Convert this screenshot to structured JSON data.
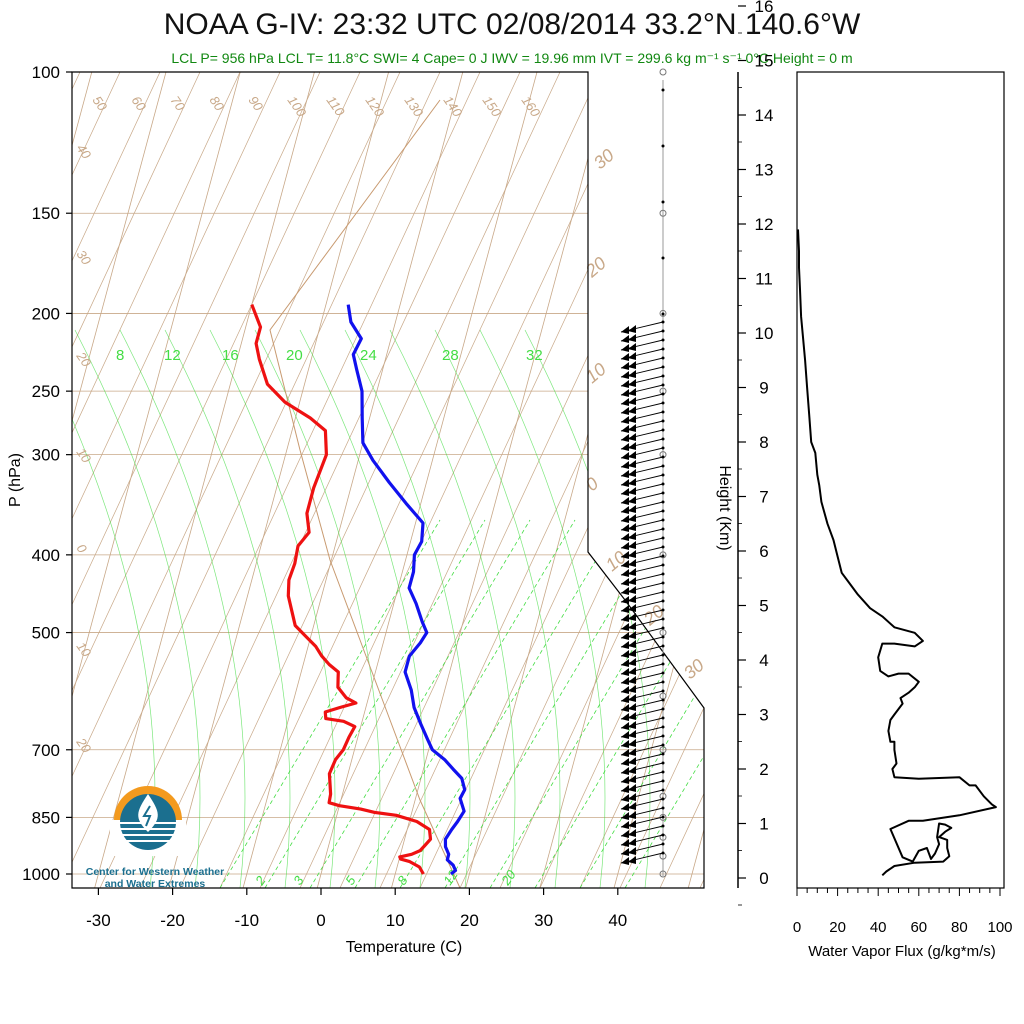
{
  "title": "NOAA G-IV: 23:32 UTC 02/08/2014  33.2°N 140.6°W",
  "subtitle": "LCL P= 956 hPa  LCL T= 11.8°C  SWI= 4  Cape= 0 J  IWV = 19.96 mm  IVT = 299.6 kg m⁻¹ s⁻¹  0°C Height = 0 m",
  "logo": {
    "line1": "Center for Western Weather",
    "line2": "and Water Extremes",
    "icon": "water-drop-sun-icon"
  },
  "colors": {
    "temperature": "#ee1111",
    "dewpoint": "#1111ee",
    "grid": "#c8a888",
    "mixing": "#44dd44",
    "title_sub": "#118811"
  },
  "chart_data": [
    {
      "type": "line",
      "chart": "skew-t",
      "xlabel": "Temperature (C)",
      "ylabel": "P (hPa)",
      "xlim": [
        -34,
        52
      ],
      "x_ticks": [
        -30,
        -20,
        -10,
        0,
        10,
        20,
        30,
        40
      ],
      "y_ticks": [
        100,
        150,
        200,
        250,
        300,
        400,
        500,
        700,
        850,
        1000
      ],
      "ylim": [
        1050,
        100
      ],
      "log_pressure": true,
      "isotherm_labels": [
        "50",
        "60",
        "70",
        "80",
        "90",
        "100",
        "110",
        "120",
        "130",
        "140",
        "150",
        "160",
        "40",
        "30",
        "20",
        "10",
        "0",
        "-10",
        "-20",
        "30",
        "20",
        "10",
        "0",
        "10",
        "20",
        "30"
      ],
      "mixing_ratio_labels_upper": [
        "8",
        "12",
        "16",
        "20",
        "24",
        "28",
        "32"
      ],
      "mixing_ratio_labels_lower": [
        "2",
        "3",
        "5",
        "8",
        "12",
        "20"
      ],
      "series": [
        {
          "name": "",
          "role": "temperature",
          "points": [
            [
              13.8,
              1000
            ],
            [
              13.0,
              980
            ],
            [
              12.0,
              970
            ],
            [
              11.5,
              965
            ],
            [
              10.2,
              958
            ],
            [
              10.0,
              952
            ],
            [
              11.5,
              945
            ],
            [
              12.5,
              935
            ],
            [
              13.0,
              920
            ],
            [
              13.5,
              905
            ],
            [
              13.0,
              880
            ],
            [
              11.0,
              860
            ],
            [
              8.0,
              845
            ],
            [
              5.0,
              838
            ],
            [
              3.0,
              830
            ],
            [
              0.0,
              822
            ],
            [
              -1.5,
              815
            ],
            [
              -1.6,
              795
            ],
            [
              -2.0,
              775
            ],
            [
              -2.5,
              750
            ],
            [
              -2.2,
              720
            ],
            [
              -1.5,
              700
            ],
            [
              -1.2,
              675
            ],
            [
              -0.8,
              655
            ],
            [
              -2.5,
              645
            ],
            [
              -5.0,
              640
            ],
            [
              -5.3,
              628
            ],
            [
              -3.5,
              620
            ],
            [
              -1.5,
              612
            ],
            [
              -3.0,
              603
            ],
            [
              -4.5,
              585
            ],
            [
              -4.8,
              570
            ],
            [
              -5.0,
              560
            ],
            [
              -6.5,
              548
            ],
            [
              -7.8,
              535
            ],
            [
              -9.0,
              520
            ],
            [
              -10.5,
              507
            ],
            [
              -12.5,
              490
            ],
            [
              -14.5,
              450
            ],
            [
              -15.0,
              430
            ],
            [
              -14.8,
              410
            ],
            [
              -15.0,
              390
            ],
            [
              -14.0,
              375
            ],
            [
              -15.0,
              355
            ],
            [
              -15.0,
              330
            ],
            [
              -14.5,
              300
            ],
            [
              -15.5,
              280
            ],
            [
              -18.0,
              270
            ],
            [
              -22.0,
              258
            ],
            [
              -25.0,
              245
            ],
            [
              -27.0,
              228
            ],
            [
              -28.0,
              218
            ],
            [
              -28.0,
              208
            ],
            [
              -30.0,
              195
            ]
          ]
        },
        {
          "name": "",
          "role": "dewpoint",
          "points": [
            [
              17.5,
              1000
            ],
            [
              18.0,
              990
            ],
            [
              17.5,
              975
            ],
            [
              16.5,
              960
            ],
            [
              16.5,
              945
            ],
            [
              15.8,
              925
            ],
            [
              15.5,
              905
            ],
            [
              16.0,
              880
            ],
            [
              16.5,
              860
            ],
            [
              17.0,
              835
            ],
            [
              16.0,
              805
            ],
            [
              16.3,
              785
            ],
            [
              15.5,
              760
            ],
            [
              14.0,
              740
            ],
            [
              12.5,
              720
            ],
            [
              10.5,
              700
            ],
            [
              9.5,
              680
            ],
            [
              8.0,
              650
            ],
            [
              6.5,
              620
            ],
            [
              5.5,
              590
            ],
            [
              4.0,
              560
            ],
            [
              4.0,
              535
            ],
            [
              5.0,
              515
            ],
            [
              5.5,
              500
            ],
            [
              4.5,
              485
            ],
            [
              3.0,
              460
            ],
            [
              1.5,
              440
            ],
            [
              1.5,
              420
            ],
            [
              1.0,
              400
            ],
            [
              1.5,
              385
            ],
            [
              1.0,
              365
            ],
            [
              -2.0,
              345
            ],
            [
              -5.0,
              325
            ],
            [
              -8.0,
              305
            ],
            [
              -10.0,
              290
            ],
            [
              -11.0,
              270
            ],
            [
              -12.0,
              250
            ],
            [
              -13.5,
              235
            ],
            [
              -14.5,
              225
            ],
            [
              -14.0,
              215
            ],
            [
              -16.0,
              205
            ],
            [
              -17.0,
              195
            ]
          ]
        }
      ]
    },
    {
      "type": "line",
      "chart": "water-vapor-flux-profile",
      "xlabel": "Water Vapor Flux (g/kg*m/s)",
      "ylabel": "Height (Km)",
      "xlim": [
        0,
        100
      ],
      "ylim": [
        0,
        16.5
      ],
      "x_ticks": [
        0,
        20,
        40,
        60,
        80,
        100
      ],
      "y_ticks": [
        0,
        1,
        2,
        3,
        4,
        5,
        6,
        7,
        8,
        9,
        10,
        11,
        12,
        13,
        14,
        15,
        16
      ],
      "series": [
        {
          "name": "",
          "points": [
            [
              42,
              0.05
            ],
            [
              44,
              0.12
            ],
            [
              48,
              0.22
            ],
            [
              58,
              0.28
            ],
            [
              72,
              0.3
            ],
            [
              75,
              0.4
            ],
            [
              74,
              0.55
            ],
            [
              74,
              0.7
            ],
            [
              70,
              0.75
            ],
            [
              73,
              0.85
            ],
            [
              76,
              0.92
            ],
            [
              73,
              0.98
            ],
            [
              70,
              1.0
            ],
            [
              69,
              0.75
            ],
            [
              70,
              0.62
            ],
            [
              68,
              0.45
            ],
            [
              66,
              0.35
            ],
            [
              64,
              0.55
            ],
            [
              60,
              0.5
            ],
            [
              57,
              0.3
            ],
            [
              52,
              0.38
            ],
            [
              46,
              0.9
            ],
            [
              55,
              1.05
            ],
            [
              62,
              1.05
            ],
            [
              80,
              1.15
            ],
            [
              98,
              1.3
            ],
            [
              96,
              1.35
            ],
            [
              92,
              1.5
            ],
            [
              88,
              1.7
            ],
            [
              85,
              1.7
            ],
            [
              80,
              1.85
            ],
            [
              60,
              1.82
            ],
            [
              48,
              1.85
            ],
            [
              47,
              2.0
            ],
            [
              49,
              2.1
            ],
            [
              48,
              2.35
            ],
            [
              48,
              2.5
            ],
            [
              46,
              2.5
            ],
            [
              45,
              2.7
            ],
            [
              46,
              2.9
            ],
            [
              48,
              3.0
            ],
            [
              52,
              3.2
            ],
            [
              51,
              3.3
            ],
            [
              55,
              3.4
            ],
            [
              58,
              3.5
            ],
            [
              60,
              3.6
            ],
            [
              55,
              3.75
            ],
            [
              50,
              3.75
            ],
            [
              45,
              3.7
            ],
            [
              41,
              3.8
            ],
            [
              40,
              4.05
            ],
            [
              42,
              4.3
            ],
            [
              48,
              4.3
            ],
            [
              58,
              4.25
            ],
            [
              62,
              4.35
            ],
            [
              58,
              4.5
            ],
            [
              48,
              4.6
            ],
            [
              42,
              4.8
            ],
            [
              36,
              4.95
            ],
            [
              30,
              5.2
            ],
            [
              25,
              5.45
            ],
            [
              22,
              5.6
            ],
            [
              20,
              5.9
            ],
            [
              18,
              6.2
            ],
            [
              15,
              6.5
            ],
            [
              12,
              6.9
            ],
            [
              11,
              7.2
            ],
            [
              10,
              7.4
            ],
            [
              9.5,
              7.6
            ],
            [
              9,
              7.8
            ],
            [
              7,
              8.0
            ],
            [
              6,
              8.5
            ],
            [
              5,
              9.0
            ],
            [
              4,
              9.5
            ],
            [
              3,
              9.9
            ],
            [
              2,
              10.3
            ],
            [
              1.5,
              10.8
            ],
            [
              1,
              11.2
            ],
            [
              1,
              11.5
            ],
            [
              0.5,
              11.9
            ]
          ]
        }
      ]
    }
  ]
}
